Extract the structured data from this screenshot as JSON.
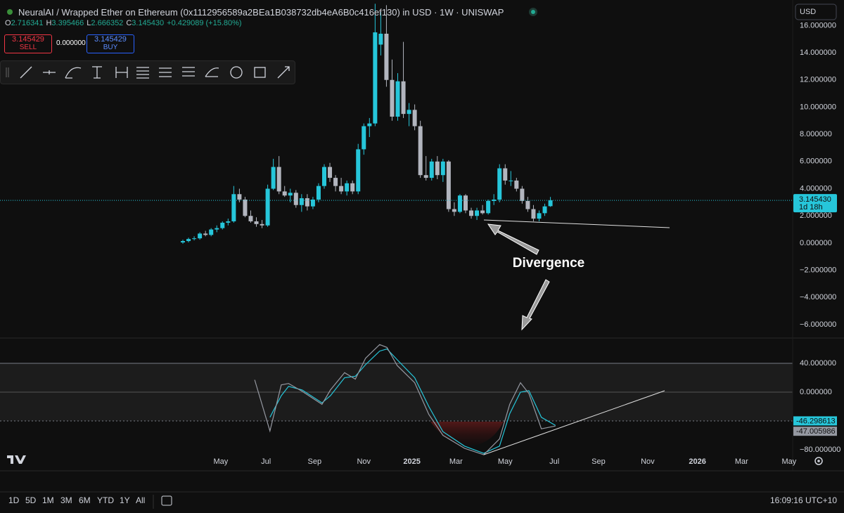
{
  "header": {
    "symbol_title": "NeuralAI / Wrapped Ether on Ethereum (0x1112956589a2BEa1B038732db4eA6B0c416ef130) in USD · 1W · UNISWAP",
    "ohlc": [
      {
        "key": "O",
        "value": "2.716341"
      },
      {
        "key": "H",
        "value": "3.395466"
      },
      {
        "key": "L",
        "value": "2.666352"
      },
      {
        "key": "C",
        "value": "3.145430"
      }
    ],
    "change": "+0.429089 (+15.80%)"
  },
  "trade": {
    "sell_price": "3.145429",
    "sell_label": "SELL",
    "spread": "0.000000",
    "buy_price": "3.145429",
    "buy_label": "BUY"
  },
  "currency": "USD",
  "last_price": {
    "label": "3.145430",
    "countdown": "1d 18h"
  },
  "annotation": "Divergence",
  "chart_data": [
    {
      "type": "candlestick",
      "x": [
        0,
        1,
        2,
        3,
        4,
        5,
        6,
        7,
        8,
        9,
        10,
        11,
        12,
        13,
        14,
        15,
        16,
        17,
        18,
        19,
        20,
        21,
        22,
        23,
        24,
        25,
        26,
        27,
        28,
        29,
        30,
        31,
        32,
        33,
        34,
        35,
        36,
        37,
        38,
        39,
        40,
        41,
        42,
        43,
        44,
        45,
        46,
        47,
        48,
        49,
        50,
        51,
        52,
        53,
        54,
        55,
        56,
        57,
        58,
        59,
        60,
        61,
        62,
        63,
        64,
        65
      ],
      "open": [
        0.05,
        0.15,
        0.3,
        0.35,
        0.7,
        0.6,
        1.0,
        1.1,
        1.5,
        1.6,
        3.6,
        3.2,
        2.0,
        1.6,
        1.4,
        1.3,
        4.0,
        5.6,
        3.8,
        3.5,
        3.7,
        2.8,
        3.3,
        2.7,
        3.2,
        4.2,
        5.6,
        4.8,
        4.2,
        3.8,
        4.4,
        3.8,
        6.9,
        8.6,
        8.8,
        14.6,
        15.4,
        12.0,
        9.3,
        11.9,
        9.5,
        9.8,
        8.6,
        5.0,
        4.8,
        6.0,
        5.0,
        6.0,
        2.5,
        2.3,
        3.5,
        2.4,
        2.0,
        2.4,
        2.2,
        3.1,
        3.2,
        5.5,
        4.6,
        4.6,
        4.0,
        3.1,
        2.5,
        1.8,
        2.2,
        2.716341
      ],
      "high": [
        0.25,
        0.4,
        0.5,
        0.8,
        0.9,
        1.1,
        1.3,
        1.6,
        1.8,
        4.2,
        4.0,
        3.4,
        2.4,
        1.9,
        1.7,
        4.3,
        6.2,
        6.4,
        4.2,
        4.0,
        3.9,
        3.6,
        3.6,
        3.4,
        4.4,
        5.8,
        5.9,
        5.0,
        4.8,
        4.6,
        4.6,
        7.3,
        8.8,
        9.2,
        17.6,
        17.0,
        17.5,
        13.5,
        12.5,
        14.8,
        10.3,
        10.2,
        9.0,
        6.4,
        6.2,
        6.4,
        6.2,
        6.1,
        3.0,
        3.6,
        3.6,
        2.6,
        2.6,
        2.8,
        3.2,
        3.6,
        5.8,
        5.8,
        5.3,
        4.8,
        4.2,
        3.4,
        2.8,
        2.4,
        2.9,
        3.395466
      ],
      "low": [
        -0.05,
        0.05,
        0.2,
        0.25,
        0.5,
        0.5,
        0.8,
        1.0,
        1.3,
        1.5,
        3.0,
        1.9,
        1.5,
        1.2,
        1.1,
        1.2,
        3.9,
        3.6,
        3.4,
        3.0,
        2.6,
        2.3,
        2.4,
        2.5,
        3.0,
        4.0,
        4.5,
        3.8,
        3.6,
        3.5,
        3.6,
        3.6,
        6.5,
        7.8,
        8.6,
        13.8,
        11.5,
        9.0,
        9.0,
        9.2,
        8.6,
        8.3,
        4.8,
        4.6,
        4.6,
        4.7,
        4.5,
        2.3,
        2.0,
        2.2,
        2.2,
        1.8,
        1.7,
        2.1,
        2.1,
        2.8,
        3.0,
        4.3,
        4.2,
        3.8,
        2.9,
        2.3,
        1.6,
        1.6,
        2.0,
        2.666352
      ],
      "close": [
        0.15,
        0.3,
        0.35,
        0.7,
        0.6,
        1.0,
        1.1,
        1.5,
        1.6,
        3.6,
        3.2,
        2.0,
        1.6,
        1.4,
        1.3,
        4.0,
        5.6,
        3.8,
        3.5,
        3.7,
        2.8,
        3.3,
        2.7,
        3.2,
        4.2,
        5.6,
        4.8,
        4.2,
        3.8,
        4.4,
        3.8,
        6.9,
        8.6,
        8.8,
        15.5,
        15.4,
        12.0,
        9.3,
        11.9,
        9.5,
        9.8,
        8.6,
        5.0,
        4.8,
        6.0,
        5.0,
        6.0,
        2.5,
        2.3,
        3.5,
        2.4,
        2.0,
        2.4,
        2.2,
        3.1,
        3.2,
        5.5,
        4.6,
        4.6,
        4.0,
        3.1,
        2.5,
        1.8,
        2.2,
        2.7,
        3.14543
      ],
      "up_color": "#26c6da",
      "down_color": "#b2b5be",
      "xlim": [
        -32.34,
        107.84
      ],
      "xticks": [
        {
          "value": 6.7,
          "label": "May"
        },
        {
          "value": 14.7,
          "label": "Jul"
        },
        {
          "value": 23.3,
          "label": "Sep"
        },
        {
          "value": 32.0,
          "label": "Nov"
        },
        {
          "value": 40.5,
          "label": "2025"
        },
        {
          "value": 48.3,
          "label": "Mar"
        },
        {
          "value": 57.0,
          "label": "May"
        },
        {
          "value": 65.7,
          "label": "Jul"
        },
        {
          "value": 73.5,
          "label": "Sep"
        },
        {
          "value": 82.2,
          "label": "Nov"
        },
        {
          "value": 91.0,
          "label": "2026"
        },
        {
          "value": 98.8,
          "label": "Mar"
        },
        {
          "value": 107.2,
          "label": "May"
        }
      ],
      "ylim": [
        -6.93,
        17.88
      ],
      "yticks": [
        {
          "value": 16,
          "label": "16.000000"
        },
        {
          "value": 14,
          "label": "14.000000"
        },
        {
          "value": 12,
          "label": "12.000000"
        },
        {
          "value": 10,
          "label": "10.000000"
        },
        {
          "value": 8,
          "label": "8.000000"
        },
        {
          "value": 6,
          "label": "6.000000"
        },
        {
          "value": 4,
          "label": "4.000000"
        },
        {
          "value": 2,
          "label": "2.000000"
        },
        {
          "value": 0,
          "label": "0.000000"
        },
        {
          "value": -2,
          "label": "−2.000000"
        },
        {
          "value": -4,
          "label": "−4.000000"
        },
        {
          "value": -6,
          "label": "−6.000000"
        }
      ]
    },
    {
      "type": "line",
      "x": [
        12.7,
        15.4,
        17.4,
        18.7,
        21.1,
        24.6,
        26.1,
        28.6,
        30.5,
        32.3,
        34.8,
        36.1,
        37.9,
        41.0,
        43.5,
        46.0,
        49.8,
        53.2,
        56.0,
        57.8,
        59.7,
        61.2,
        63.4,
        65.9
      ],
      "series": [
        {
          "color": "#26c6da",
          "values": [
            null,
            -35,
            -5,
            8,
            3,
            -15,
            -5,
            20,
            22,
            38,
            57,
            60,
            45,
            20,
            -20,
            -55,
            -75,
            -85,
            -75,
            -30,
            0,
            2,
            -35,
            -46.298613
          ]
        },
        {
          "color": "#9598a1",
          "values": [
            17,
            -54,
            10,
            12,
            1,
            -17,
            3,
            27,
            18,
            47,
            66,
            62,
            37,
            13,
            -31,
            -60,
            -78,
            -87,
            -65,
            -17,
            13,
            -2,
            -51,
            -47.005986
          ]
        }
      ],
      "band": [
        -40,
        40
      ],
      "midline": 0,
      "ylim": [
        -109.3,
        75.1
      ],
      "yticks": [
        {
          "value": 40,
          "label": "40.000000"
        },
        {
          "value": 0,
          "label": "0.000000"
        },
        {
          "value": -80,
          "label": "−80.000000"
        }
      ]
    }
  ],
  "ranges": [
    "1D",
    "5D",
    "1M",
    "3M",
    "6M",
    "YTD",
    "1Y",
    "All"
  ],
  "clock": "16:09:16 UTC+10"
}
